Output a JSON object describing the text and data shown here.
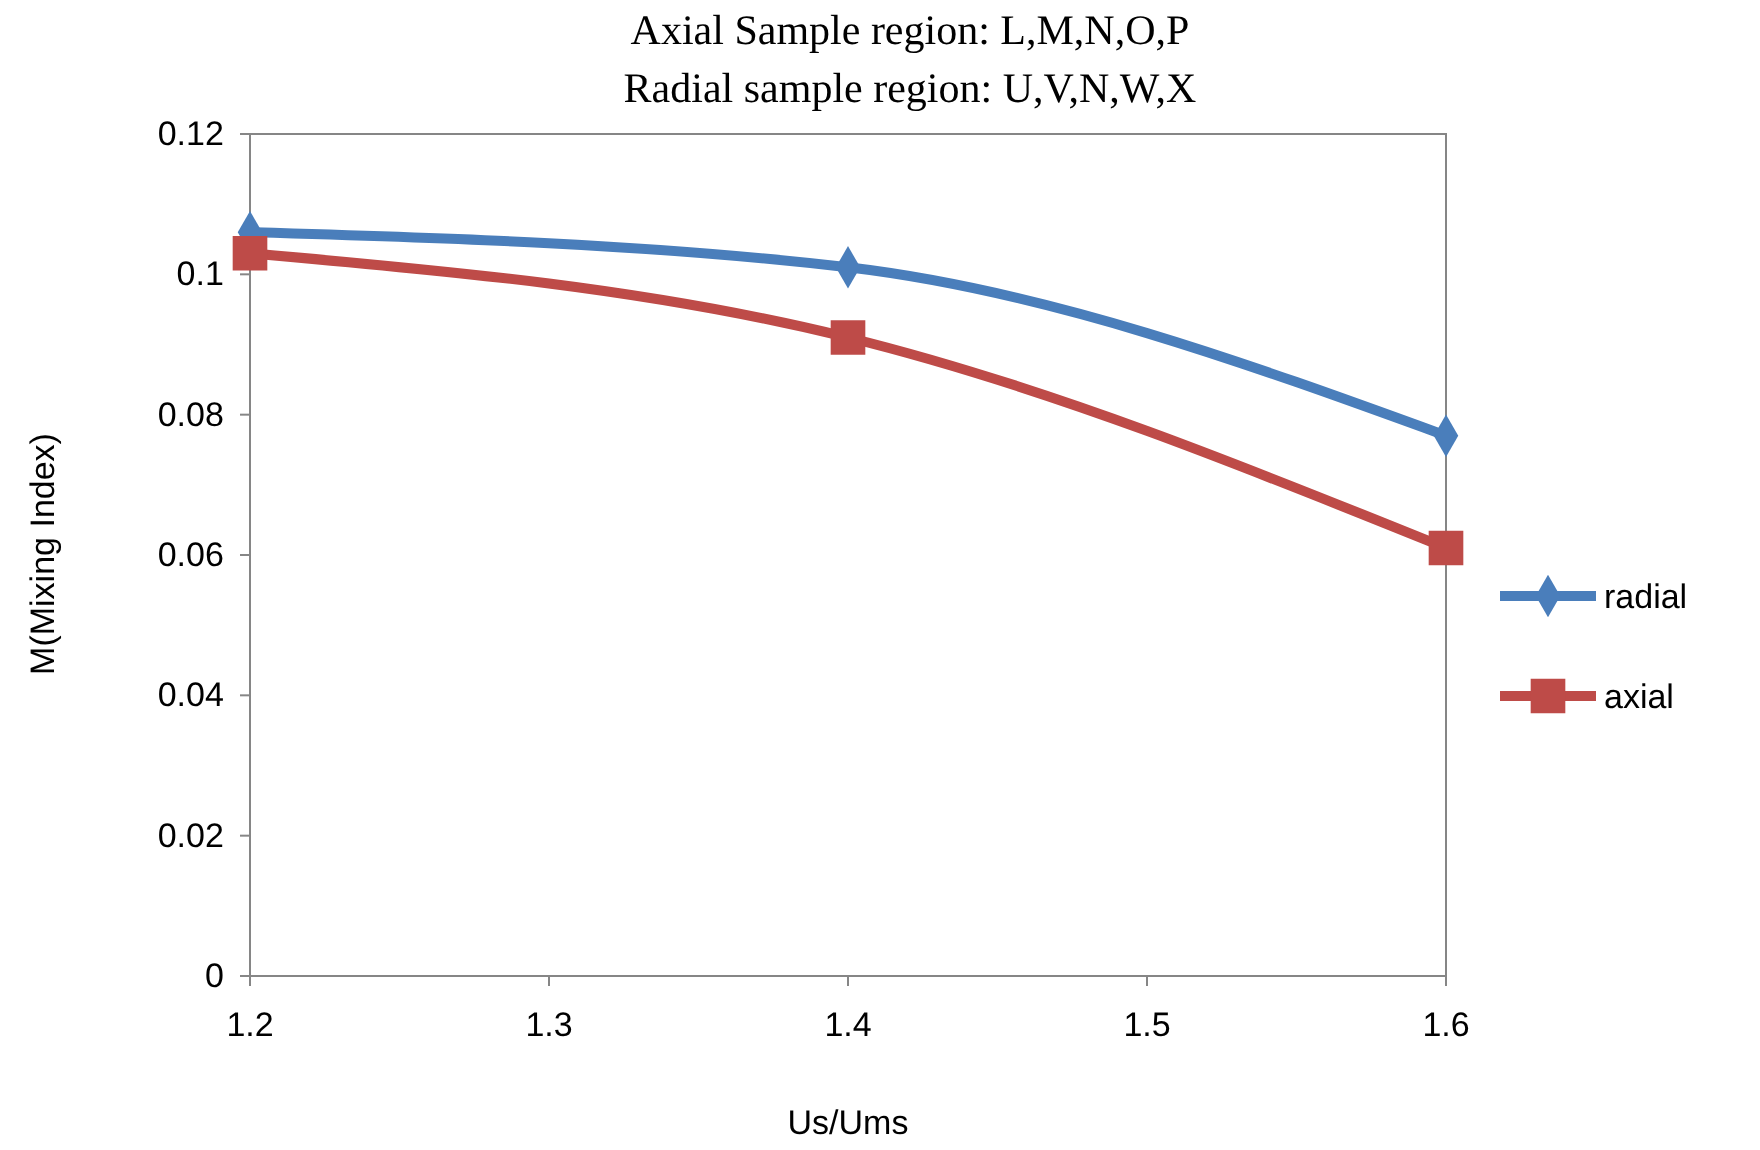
{
  "chart_data": {
    "type": "line",
    "title": "Axial Sample region: L,M,N,O,P",
    "subtitle": "Radial sample region: U,V,N,W,X",
    "xlabel": "Us/Ums",
    "ylabel": "M(Mixing Index)",
    "x": [
      1.2,
      1.4,
      1.6
    ],
    "series": [
      {
        "name": "radial",
        "color": "#4a7ebb",
        "marker": "diamond",
        "values": [
          0.106,
          0.101,
          0.077
        ]
      },
      {
        "name": "axial",
        "color": "#be4b48",
        "marker": "square",
        "values": [
          0.103,
          0.091,
          0.061
        ]
      }
    ],
    "xlim": [
      1.2,
      1.6
    ],
    "xticks": [
      1.2,
      1.3,
      1.4,
      1.5,
      1.6
    ],
    "ylim": [
      0,
      0.12
    ],
    "yticks": [
      {
        "value": 0,
        "label": "0"
      },
      0.02,
      0.04,
      0.06,
      0.08,
      {
        "value": 0.1,
        "label": "0.1"
      },
      0.12
    ],
    "grid": false,
    "legend": "right",
    "line_style": "solid"
  }
}
